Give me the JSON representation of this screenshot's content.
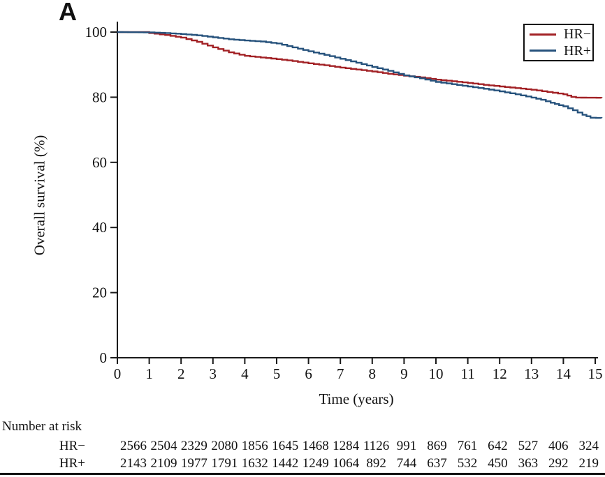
{
  "panel_label": "A",
  "colors": {
    "hr_minus": "#a22125",
    "hr_plus": "#26527c",
    "axis": "#1a1a1a"
  },
  "chart_data": {
    "type": "line",
    "subtype": "kaplan-meier-survival",
    "title": "A",
    "xlabel": "Time (years)",
    "ylabel": "Overall survival (%)",
    "xlim": [
      0,
      15
    ],
    "ylim": [
      0,
      100
    ],
    "x_ticks": [
      0,
      1,
      2,
      3,
      4,
      5,
      6,
      7,
      8,
      9,
      10,
      11,
      12,
      13,
      14,
      15
    ],
    "y_ticks": [
      0,
      20,
      40,
      60,
      80,
      100
    ],
    "grid": false,
    "legend": {
      "position": "top-right",
      "entries": [
        "HR−",
        "HR+"
      ]
    },
    "series": [
      {
        "name": "HR−",
        "color": "#a22125",
        "points": [
          [
            0,
            100
          ],
          [
            0.9,
            100
          ],
          [
            1,
            99.7
          ],
          [
            1.5,
            99.1
          ],
          [
            2,
            98.3
          ],
          [
            2.5,
            97.0
          ],
          [
            3,
            95.3
          ],
          [
            3.5,
            93.8
          ],
          [
            4,
            92.7
          ],
          [
            4.5,
            92.2
          ],
          [
            5,
            91.7
          ],
          [
            5.5,
            91.1
          ],
          [
            6,
            90.4
          ],
          [
            6.5,
            89.8
          ],
          [
            7,
            89.1
          ],
          [
            7.5,
            88.5
          ],
          [
            8,
            87.9
          ],
          [
            8.5,
            87.2
          ],
          [
            9,
            86.6
          ],
          [
            9.5,
            86.1
          ],
          [
            10,
            85.4
          ],
          [
            10.5,
            84.9
          ],
          [
            11,
            84.4
          ],
          [
            11.5,
            83.8
          ],
          [
            12,
            83.3
          ],
          [
            12.5,
            82.8
          ],
          [
            13,
            82.3
          ],
          [
            13.5,
            81.6
          ],
          [
            14,
            80.9
          ],
          [
            14.25,
            80.1
          ],
          [
            14.4,
            79.9
          ],
          [
            15.2,
            79.8
          ]
        ]
      },
      {
        "name": "HR+",
        "color": "#26527c",
        "points": [
          [
            0,
            100
          ],
          [
            1,
            99.9
          ],
          [
            1.5,
            99.7
          ],
          [
            2,
            99.4
          ],
          [
            2.5,
            99.0
          ],
          [
            3,
            98.4
          ],
          [
            3.5,
            97.8
          ],
          [
            4,
            97.4
          ],
          [
            4.5,
            97.1
          ],
          [
            5,
            96.5
          ],
          [
            5.5,
            95.3
          ],
          [
            6,
            94.1
          ],
          [
            6.5,
            93.0
          ],
          [
            7,
            91.8
          ],
          [
            7.5,
            90.6
          ],
          [
            8,
            89.3
          ],
          [
            8.5,
            88.1
          ],
          [
            9,
            86.7
          ],
          [
            9.5,
            85.8
          ],
          [
            10,
            84.7
          ],
          [
            10.5,
            84.0
          ],
          [
            11,
            83.3
          ],
          [
            11.5,
            82.6
          ],
          [
            12,
            81.8
          ],
          [
            12.5,
            80.9
          ],
          [
            13,
            79.9
          ],
          [
            13.3,
            79.2
          ],
          [
            13.6,
            78.3
          ],
          [
            14,
            77.2
          ],
          [
            14.3,
            76.0
          ],
          [
            14.6,
            74.6
          ],
          [
            14.85,
            73.7
          ],
          [
            15.2,
            73.6
          ]
        ]
      }
    ],
    "at_risk": {
      "title": "Number at risk",
      "time_points": [
        0,
        1,
        2,
        3,
        4,
        5,
        6,
        7,
        8,
        9,
        10,
        11,
        12,
        13,
        14,
        15
      ],
      "rows": [
        {
          "label": "HR−",
          "counts": [
            2566,
            2504,
            2329,
            2080,
            1856,
            1645,
            1468,
            1284,
            1126,
            991,
            869,
            761,
            642,
            527,
            406,
            324
          ]
        },
        {
          "label": "HR+",
          "counts": [
            2143,
            2109,
            1977,
            1791,
            1632,
            1442,
            1249,
            1064,
            892,
            744,
            637,
            532,
            450,
            363,
            292,
            219
          ]
        }
      ]
    }
  }
}
